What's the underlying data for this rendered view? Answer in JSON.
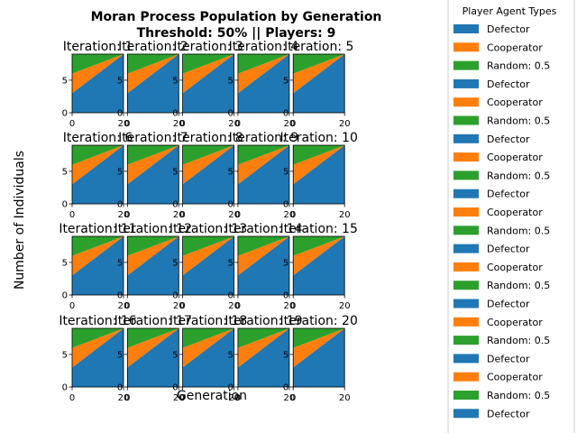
{
  "chart_data": {
    "type": "area",
    "title": "Moran Process Population by Generation",
    "subtitle": "Threshold: 50% || Players: 9",
    "xlabel": "Generation",
    "ylabel": "Number of Individuals",
    "legend_title": "Player Agent Types",
    "legend_entries": [
      {
        "label": "Defector",
        "color": "#1f77b4"
      },
      {
        "label": "Cooperator",
        "color": "#ff7f0e"
      },
      {
        "label": "Random: 0.5",
        "color": "#2ca02c"
      },
      {
        "label": "Defector",
        "color": "#1f77b4"
      },
      {
        "label": "Cooperator",
        "color": "#ff7f0e"
      },
      {
        "label": "Random: 0.5",
        "color": "#2ca02c"
      },
      {
        "label": "Defector",
        "color": "#1f77b4"
      },
      {
        "label": "Cooperator",
        "color": "#ff7f0e"
      },
      {
        "label": "Random: 0.5",
        "color": "#2ca02c"
      },
      {
        "label": "Defector",
        "color": "#1f77b4"
      },
      {
        "label": "Cooperator",
        "color": "#ff7f0e"
      },
      {
        "label": "Random: 0.5",
        "color": "#2ca02c"
      },
      {
        "label": "Defector",
        "color": "#1f77b4"
      },
      {
        "label": "Cooperator",
        "color": "#ff7f0e"
      },
      {
        "label": "Random: 0.5",
        "color": "#2ca02c"
      },
      {
        "label": "Defector",
        "color": "#1f77b4"
      },
      {
        "label": "Cooperator",
        "color": "#ff7f0e"
      },
      {
        "label": "Random: 0.5",
        "color": "#2ca02c"
      },
      {
        "label": "Defector",
        "color": "#1f77b4"
      },
      {
        "label": "Cooperator",
        "color": "#ff7f0e"
      },
      {
        "label": "Random: 0.5",
        "color": "#2ca02c"
      },
      {
        "label": "Defector",
        "color": "#1f77b4"
      }
    ],
    "xlim": [
      0,
      20
    ],
    "ylim": [
      0,
      9
    ],
    "yticks": [
      0,
      5
    ],
    "series_names": [
      "Defector",
      "Cooperator",
      "Random: 0.5"
    ],
    "series_colors": [
      "#1f77b4",
      "#ff7f0e",
      "#2ca02c"
    ],
    "iterations": [
      {
        "title": "Iteration: 1",
        "x": [
          0,
          20
        ],
        "series": [
          [
            3,
            9
          ],
          [
            3,
            0
          ],
          [
            3,
            0
          ]
        ]
      },
      {
        "title": "Iteration: 2",
        "x": [
          0,
          20
        ],
        "series": [
          [
            3,
            9
          ],
          [
            3,
            0
          ],
          [
            3,
            0
          ]
        ]
      },
      {
        "title": "Iteration: 3",
        "x": [
          0,
          20
        ],
        "series": [
          [
            3,
            9
          ],
          [
            3,
            0
          ],
          [
            3,
            0
          ]
        ]
      },
      {
        "title": "Iteration: 4",
        "x": [
          0,
          20
        ],
        "series": [
          [
            3,
            9
          ],
          [
            3,
            0
          ],
          [
            3,
            0
          ]
        ]
      },
      {
        "title": "Iteration: 5",
        "x": [
          0,
          20
        ],
        "series": [
          [
            3,
            9
          ],
          [
            3,
            0
          ],
          [
            3,
            0
          ]
        ]
      },
      {
        "title": "Iteration: 6",
        "x": [
          0,
          20
        ],
        "series": [
          [
            3,
            9
          ],
          [
            3,
            0
          ],
          [
            3,
            0
          ]
        ]
      },
      {
        "title": "Iteration: 7",
        "x": [
          0,
          20
        ],
        "series": [
          [
            3,
            9
          ],
          [
            3,
            0
          ],
          [
            3,
            0
          ]
        ]
      },
      {
        "title": "Iteration: 8",
        "x": [
          0,
          20
        ],
        "series": [
          [
            3,
            9
          ],
          [
            3,
            0
          ],
          [
            3,
            0
          ]
        ]
      },
      {
        "title": "Iteration: 9",
        "x": [
          0,
          20
        ],
        "series": [
          [
            3,
            9
          ],
          [
            3,
            0
          ],
          [
            3,
            0
          ]
        ]
      },
      {
        "title": "Iteration: 10",
        "x": [
          0,
          20
        ],
        "series": [
          [
            3,
            9
          ],
          [
            3,
            0
          ],
          [
            3,
            0
          ]
        ]
      },
      {
        "title": "Iteration: 11",
        "x": [
          0,
          20
        ],
        "series": [
          [
            3,
            9
          ],
          [
            3,
            0
          ],
          [
            3,
            0
          ]
        ]
      },
      {
        "title": "Iteration: 12",
        "x": [
          0,
          20
        ],
        "series": [
          [
            3,
            9
          ],
          [
            3,
            0
          ],
          [
            3,
            0
          ]
        ]
      },
      {
        "title": "Iteration: 13",
        "x": [
          0,
          20
        ],
        "series": [
          [
            3,
            9
          ],
          [
            3,
            0
          ],
          [
            3,
            0
          ]
        ]
      },
      {
        "title": "Iteration: 14",
        "x": [
          0,
          20
        ],
        "series": [
          [
            3,
            9
          ],
          [
            3,
            0
          ],
          [
            3,
            0
          ]
        ]
      },
      {
        "title": "Iteration: 15",
        "x": [
          0,
          20
        ],
        "series": [
          [
            3,
            9
          ],
          [
            3,
            0
          ],
          [
            3,
            0
          ]
        ]
      },
      {
        "title": "Iteration: 16",
        "x": [
          0,
          20
        ],
        "series": [
          [
            3,
            9
          ],
          [
            3,
            0
          ],
          [
            3,
            0
          ]
        ]
      },
      {
        "title": "Iteration: 17",
        "x": [
          0,
          20
        ],
        "series": [
          [
            3,
            9
          ],
          [
            3,
            0
          ],
          [
            3,
            0
          ]
        ]
      },
      {
        "title": "Iteration: 18",
        "x": [
          0,
          20
        ],
        "series": [
          [
            3,
            9
          ],
          [
            3,
            0
          ],
          [
            3,
            0
          ]
        ]
      },
      {
        "title": "Iteration: 19",
        "x": [
          0,
          20
        ],
        "series": [
          [
            3,
            9
          ],
          [
            3,
            0
          ],
          [
            3,
            0
          ]
        ]
      },
      {
        "title": "Iteration: 20",
        "x": [
          0,
          20
        ],
        "series": [
          [
            3,
            9
          ],
          [
            3,
            0
          ],
          [
            3,
            0
          ]
        ]
      }
    ]
  }
}
